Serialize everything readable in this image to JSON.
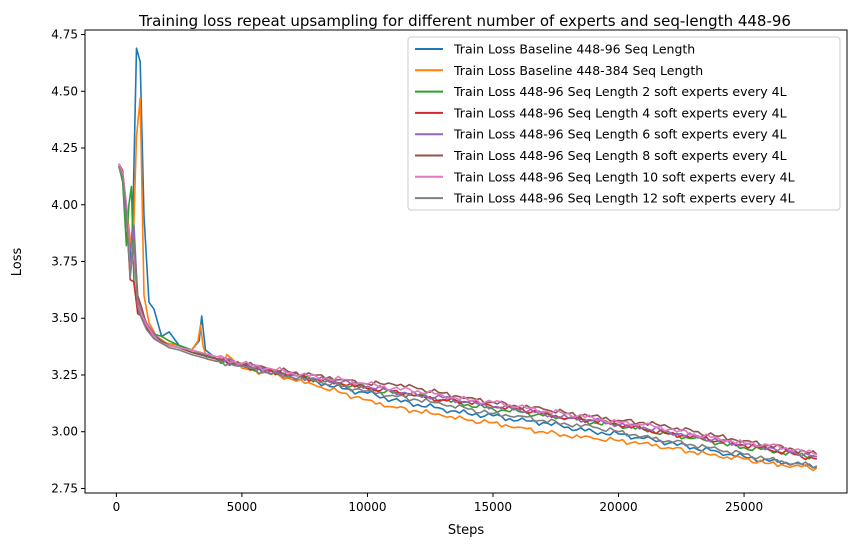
{
  "chart_data": {
    "type": "line",
    "title": "Training loss repeat upsampling for different number of experts and seq-length 448-96",
    "xlabel": "Steps",
    "ylabel": "Loss",
    "xlim": [
      -1250,
      29100
    ],
    "ylim": [
      2.73,
      4.77
    ],
    "xticks": [
      0,
      5000,
      10000,
      15000,
      20000,
      25000
    ],
    "xtick_labels": [
      "0",
      "5000",
      "10000",
      "15000",
      "20000",
      "25000"
    ],
    "yticks": [
      2.75,
      3.0,
      3.25,
      3.5,
      3.75,
      4.0,
      4.25,
      4.5,
      4.75
    ],
    "ytick_labels": [
      "2.75",
      "3.00",
      "3.25",
      "3.50",
      "3.75",
      "4.00",
      "4.25",
      "4.50",
      "4.75"
    ],
    "grid": false,
    "legend_position": "top-right",
    "series": [
      {
        "name": "Train Loss Baseline 448-96 Seq Length",
        "color": "#1f77b4",
        "x": [
          100,
          250,
          400,
          550,
          650,
          800,
          950,
          1100,
          1300,
          1500,
          1800,
          2100,
          2500,
          3000,
          3300,
          3400,
          3550,
          4000,
          5000,
          6000,
          7000,
          8000,
          9000,
          10000,
          11000,
          12000,
          13000,
          14000,
          15000,
          16000,
          17000,
          18000,
          19000,
          20000,
          21000,
          22000,
          23000,
          24000,
          25000,
          26000,
          27000,
          27900
        ],
        "values": [
          4.17,
          4.12,
          3.98,
          3.75,
          3.92,
          4.69,
          4.63,
          3.95,
          3.57,
          3.54,
          3.42,
          3.44,
          3.38,
          3.36,
          3.4,
          3.51,
          3.36,
          3.32,
          3.29,
          3.27,
          3.24,
          3.22,
          3.19,
          3.17,
          3.14,
          3.12,
          3.1,
          3.08,
          3.07,
          3.05,
          3.04,
          3.02,
          3.0,
          2.99,
          2.97,
          2.95,
          2.93,
          2.91,
          2.89,
          2.87,
          2.86,
          2.84
        ]
      },
      {
        "name": "Train Loss Baseline 448-384 Seq Length",
        "color": "#ff7f0e",
        "x": [
          100,
          300,
          500,
          650,
          800,
          950,
          1100,
          1300,
          1600,
          2000,
          2500,
          3000,
          3250,
          3350,
          3450,
          3600,
          4000,
          4400,
          5000,
          6000,
          7000,
          8000,
          9000,
          10000,
          11000,
          12000,
          13000,
          14000,
          15000,
          16000,
          17000,
          18000,
          19000,
          20000,
          21000,
          22000,
          23000,
          24000,
          25000,
          26000,
          27000,
          27900
        ],
        "values": [
          4.18,
          4.1,
          3.9,
          3.75,
          4.3,
          4.47,
          3.6,
          3.48,
          3.42,
          3.39,
          3.38,
          3.36,
          3.4,
          3.47,
          3.38,
          3.32,
          3.31,
          3.34,
          3.28,
          3.26,
          3.23,
          3.2,
          3.17,
          3.14,
          3.11,
          3.09,
          3.07,
          3.05,
          3.04,
          3.02,
          3.0,
          2.98,
          2.97,
          2.96,
          2.95,
          2.93,
          2.91,
          2.89,
          2.88,
          2.86,
          2.85,
          2.84
        ]
      },
      {
        "name": "Train Loss 448-96 Seq Length 2 soft experts every 4L",
        "color": "#2ca02c",
        "x": [
          100,
          250,
          400,
          500,
          600,
          700,
          850,
          1000,
          1200,
          1500,
          1800,
          2100,
          2500,
          3000,
          4000,
          5000,
          6000,
          7000,
          8000,
          9000,
          10000,
          11000,
          12000,
          13000,
          14000,
          15000,
          16000,
          17000,
          18000,
          19000,
          20000,
          21000,
          22000,
          23000,
          24000,
          25000,
          26000,
          27000,
          27900
        ],
        "values": [
          4.17,
          4.1,
          3.82,
          4.0,
          4.08,
          3.65,
          3.53,
          3.52,
          3.47,
          3.43,
          3.42,
          3.4,
          3.38,
          3.36,
          3.32,
          3.29,
          3.27,
          3.25,
          3.23,
          3.21,
          3.19,
          3.17,
          3.16,
          3.14,
          3.12,
          3.1,
          3.09,
          3.07,
          3.06,
          3.04,
          3.03,
          3.01,
          2.99,
          2.97,
          2.95,
          2.93,
          2.92,
          2.9,
          2.89
        ]
      },
      {
        "name": "Train Loss 448-96 Seq Length 4 soft experts every 4L",
        "color": "#d62728",
        "x": [
          100,
          250,
          400,
          550,
          700,
          850,
          1000,
          1200,
          1500,
          1800,
          2100,
          2500,
          3000,
          4000,
          5000,
          6000,
          7000,
          8000,
          9000,
          10000,
          11000,
          12000,
          13000,
          14000,
          15000,
          16000,
          17000,
          18000,
          19000,
          20000,
          21000,
          22000,
          23000,
          24000,
          25000,
          26000,
          27000,
          27900
        ],
        "values": [
          4.18,
          4.15,
          3.95,
          3.67,
          3.66,
          3.52,
          3.51,
          3.46,
          3.41,
          3.39,
          3.38,
          3.37,
          3.35,
          3.32,
          3.29,
          3.27,
          3.25,
          3.23,
          3.21,
          3.19,
          3.18,
          3.16,
          3.14,
          3.13,
          3.11,
          3.1,
          3.08,
          3.06,
          3.05,
          3.03,
          3.01,
          2.99,
          2.98,
          2.96,
          2.94,
          2.92,
          2.9,
          2.88
        ]
      },
      {
        "name": "Train Loss 448-96 Seq Length 6 soft experts every 4L",
        "color": "#9467bd",
        "x": [
          100,
          250,
          400,
          550,
          700,
          850,
          1000,
          1200,
          1500,
          1800,
          2100,
          2500,
          3000,
          4000,
          5000,
          6000,
          7000,
          8000,
          9000,
          10000,
          11000,
          12000,
          13000,
          14000,
          15000,
          16000,
          17000,
          18000,
          19000,
          20000,
          21000,
          22000,
          23000,
          24000,
          25000,
          26000,
          27000,
          27900
        ],
        "values": [
          4.17,
          4.13,
          3.92,
          3.8,
          3.91,
          3.58,
          3.53,
          3.48,
          3.43,
          3.4,
          3.38,
          3.37,
          3.35,
          3.32,
          3.3,
          3.27,
          3.25,
          3.23,
          3.22,
          3.2,
          3.18,
          3.16,
          3.15,
          3.13,
          3.11,
          3.1,
          3.08,
          3.06,
          3.05,
          3.03,
          3.02,
          3.0,
          2.98,
          2.96,
          2.94,
          2.93,
          2.91,
          2.89
        ]
      },
      {
        "name": "Train Loss 448-96 Seq Length 8 soft experts every 4L",
        "color": "#8c564b",
        "x": [
          100,
          250,
          400,
          550,
          700,
          850,
          1000,
          1200,
          1500,
          1800,
          2100,
          2500,
          3000,
          4000,
          5000,
          6000,
          7000,
          8000,
          9000,
          10000,
          11000,
          12000,
          13000,
          14000,
          15000,
          16000,
          17000,
          18000,
          19000,
          20000,
          21000,
          22000,
          23000,
          24000,
          25000,
          26000,
          27000,
          27900
        ],
        "values": [
          4.18,
          4.14,
          3.96,
          3.7,
          3.85,
          3.6,
          3.55,
          3.47,
          3.42,
          3.4,
          3.38,
          3.37,
          3.35,
          3.32,
          3.3,
          3.28,
          3.26,
          3.25,
          3.23,
          3.21,
          3.21,
          3.19,
          3.17,
          3.15,
          3.13,
          3.11,
          3.1,
          3.08,
          3.07,
          3.05,
          3.04,
          3.02,
          3.0,
          2.98,
          2.96,
          2.94,
          2.92,
          2.9
        ]
      },
      {
        "name": "Train Loss 448-96 Seq Length 10 soft experts every 4L",
        "color": "#e377c2",
        "x": [
          100,
          250,
          400,
          550,
          700,
          850,
          1000,
          1200,
          1500,
          1800,
          2100,
          2500,
          3000,
          4000,
          5000,
          6000,
          7000,
          8000,
          9000,
          10000,
          11000,
          12000,
          13000,
          14000,
          15000,
          16000,
          17000,
          18000,
          19000,
          20000,
          21000,
          22000,
          23000,
          24000,
          25000,
          26000,
          27000,
          27900
        ],
        "values": [
          4.18,
          4.14,
          4.0,
          3.72,
          3.78,
          3.56,
          3.52,
          3.47,
          3.42,
          3.39,
          3.38,
          3.37,
          3.36,
          3.33,
          3.3,
          3.28,
          3.26,
          3.24,
          3.23,
          3.21,
          3.19,
          3.18,
          3.16,
          3.14,
          3.13,
          3.11,
          3.09,
          3.08,
          3.06,
          3.04,
          3.03,
          3.01,
          2.99,
          2.97,
          2.95,
          2.94,
          2.92,
          2.9
        ]
      },
      {
        "name": "Train Loss 448-96 Seq Length 12 soft experts every 4L",
        "color": "#7f7f7f",
        "x": [
          100,
          250,
          400,
          550,
          700,
          850,
          1000,
          1200,
          1500,
          1800,
          2100,
          2500,
          3000,
          4000,
          5000,
          6000,
          7000,
          8000,
          9000,
          10000,
          11000,
          12000,
          13000,
          14000,
          15000,
          16000,
          17000,
          18000,
          19000,
          20000,
          21000,
          22000,
          23000,
          24000,
          25000,
          26000,
          27000,
          27900
        ],
        "values": [
          4.17,
          4.12,
          3.96,
          3.68,
          3.85,
          3.55,
          3.5,
          3.45,
          3.41,
          3.39,
          3.37,
          3.36,
          3.34,
          3.31,
          3.29,
          3.26,
          3.24,
          3.22,
          3.2,
          3.18,
          3.16,
          3.14,
          3.12,
          3.1,
          3.08,
          3.07,
          3.05,
          3.03,
          3.02,
          3.0,
          2.98,
          2.96,
          2.94,
          2.92,
          2.9,
          2.88,
          2.86,
          2.85
        ]
      }
    ]
  }
}
